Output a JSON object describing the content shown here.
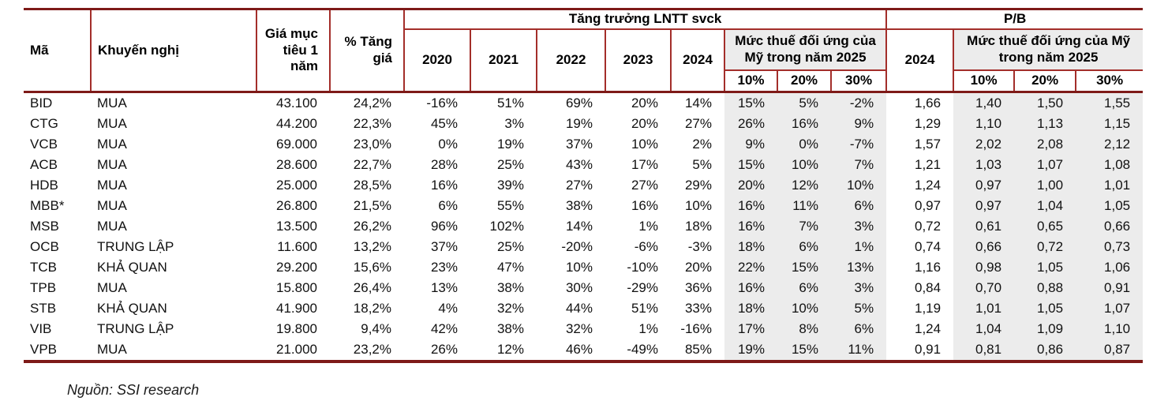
{
  "table": {
    "headers": {
      "ticker": "Mã",
      "recommendation": "Khuyến nghị",
      "target_price": "Giá mục tiêu 1 năm",
      "upside": "% Tăng giá",
      "growth_group": "Tăng trưởng LNTT svck",
      "pb_group": "P/B",
      "years": [
        "2020",
        "2021",
        "2022",
        "2023",
        "2024"
      ],
      "tariff_label": "Mức thuế đối ứng của Mỹ trong năm 2025",
      "tariff_levels": [
        "10%",
        "20%",
        "30%"
      ],
      "pb_year": "2024"
    },
    "rows": [
      {
        "ticker": "BID",
        "recommendation": "MUA",
        "target_price": "43.100",
        "upside": "24,2%",
        "growth": [
          "-16%",
          "51%",
          "69%",
          "20%",
          "14%"
        ],
        "growth_tariff": [
          "15%",
          "5%",
          "-2%"
        ],
        "pb_2024": "1,66",
        "pb_tariff": [
          "1,40",
          "1,50",
          "1,55"
        ]
      },
      {
        "ticker": "CTG",
        "recommendation": "MUA",
        "target_price": "44.200",
        "upside": "22,3%",
        "growth": [
          "45%",
          "3%",
          "19%",
          "20%",
          "27%"
        ],
        "growth_tariff": [
          "26%",
          "16%",
          "9%"
        ],
        "pb_2024": "1,29",
        "pb_tariff": [
          "1,10",
          "1,13",
          "1,15"
        ]
      },
      {
        "ticker": "VCB",
        "recommendation": "MUA",
        "target_price": "69.000",
        "upside": "23,0%",
        "growth": [
          "0%",
          "19%",
          "37%",
          "10%",
          "2%"
        ],
        "growth_tariff": [
          "9%",
          "0%",
          "-7%"
        ],
        "pb_2024": "1,57",
        "pb_tariff": [
          "2,02",
          "2,08",
          "2,12"
        ]
      },
      {
        "ticker": "ACB",
        "recommendation": "MUA",
        "target_price": "28.600",
        "upside": "22,7%",
        "growth": [
          "28%",
          "25%",
          "43%",
          "17%",
          "5%"
        ],
        "growth_tariff": [
          "15%",
          "10%",
          "7%"
        ],
        "pb_2024": "1,21",
        "pb_tariff": [
          "1,03",
          "1,07",
          "1,08"
        ]
      },
      {
        "ticker": "HDB",
        "recommendation": "MUA",
        "target_price": "25.000",
        "upside": "28,5%",
        "growth": [
          "16%",
          "39%",
          "27%",
          "27%",
          "29%"
        ],
        "growth_tariff": [
          "20%",
          "12%",
          "10%"
        ],
        "pb_2024": "1,24",
        "pb_tariff": [
          "0,97",
          "1,00",
          "1,01"
        ]
      },
      {
        "ticker": "MBB*",
        "recommendation": "MUA",
        "target_price": "26.800",
        "upside": "21,5%",
        "growth": [
          "6%",
          "55%",
          "38%",
          "16%",
          "10%"
        ],
        "growth_tariff": [
          "16%",
          "11%",
          "6%"
        ],
        "pb_2024": "0,97",
        "pb_tariff": [
          "0,97",
          "1,04",
          "1,05"
        ]
      },
      {
        "ticker": "MSB",
        "recommendation": "MUA",
        "target_price": "13.500",
        "upside": "26,2%",
        "growth": [
          "96%",
          "102%",
          "14%",
          "1%",
          "18%"
        ],
        "growth_tariff": [
          "16%",
          "7%",
          "3%"
        ],
        "pb_2024": "0,72",
        "pb_tariff": [
          "0,61",
          "0,65",
          "0,66"
        ]
      },
      {
        "ticker": "OCB",
        "recommendation": "TRUNG LẬP",
        "target_price": "11.600",
        "upside": "13,2%",
        "growth": [
          "37%",
          "25%",
          "-20%",
          "-6%",
          "-3%"
        ],
        "growth_tariff": [
          "18%",
          "6%",
          "1%"
        ],
        "pb_2024": "0,74",
        "pb_tariff": [
          "0,66",
          "0,72",
          "0,73"
        ]
      },
      {
        "ticker": "TCB",
        "recommendation": "KHẢ QUAN",
        "target_price": "29.200",
        "upside": "15,6%",
        "growth": [
          "23%",
          "47%",
          "10%",
          "-10%",
          "20%"
        ],
        "growth_tariff": [
          "22%",
          "15%",
          "13%"
        ],
        "pb_2024": "1,16",
        "pb_tariff": [
          "0,98",
          "1,05",
          "1,06"
        ]
      },
      {
        "ticker": "TPB",
        "recommendation": "MUA",
        "target_price": "15.800",
        "upside": "26,4%",
        "growth": [
          "13%",
          "38%",
          "30%",
          "-29%",
          "36%"
        ],
        "growth_tariff": [
          "16%",
          "6%",
          "3%"
        ],
        "pb_2024": "0,84",
        "pb_tariff": [
          "0,70",
          "0,88",
          "0,91"
        ]
      },
      {
        "ticker": "STB",
        "recommendation": "KHẢ QUAN",
        "target_price": "41.900",
        "upside": "18,2%",
        "growth": [
          "4%",
          "32%",
          "44%",
          "51%",
          "33%"
        ],
        "growth_tariff": [
          "18%",
          "10%",
          "5%"
        ],
        "pb_2024": "1,19",
        "pb_tariff": [
          "1,01",
          "1,05",
          "1,07"
        ]
      },
      {
        "ticker": "VIB",
        "recommendation": "TRUNG LẬP",
        "target_price": "19.800",
        "upside": "9,4%",
        "growth": [
          "42%",
          "38%",
          "32%",
          "1%",
          "-16%"
        ],
        "growth_tariff": [
          "17%",
          "8%",
          "6%"
        ],
        "pb_2024": "1,24",
        "pb_tariff": [
          "1,04",
          "1,09",
          "1,10"
        ]
      },
      {
        "ticker": "VPB",
        "recommendation": "MUA",
        "target_price": "21.000",
        "upside": "23,2%",
        "growth": [
          "26%",
          "12%",
          "46%",
          "-49%",
          "85%"
        ],
        "growth_tariff": [
          "19%",
          "15%",
          "11%"
        ],
        "pb_2024": "0,91",
        "pb_tariff": [
          "0,81",
          "0,86",
          "0,87"
        ]
      }
    ]
  },
  "footer": {
    "source": "Nguồn: SSI research"
  },
  "colors": {
    "border_thin": "#a32e2a",
    "border_thick": "#7e1a18",
    "shaded_background": "#ececec"
  }
}
